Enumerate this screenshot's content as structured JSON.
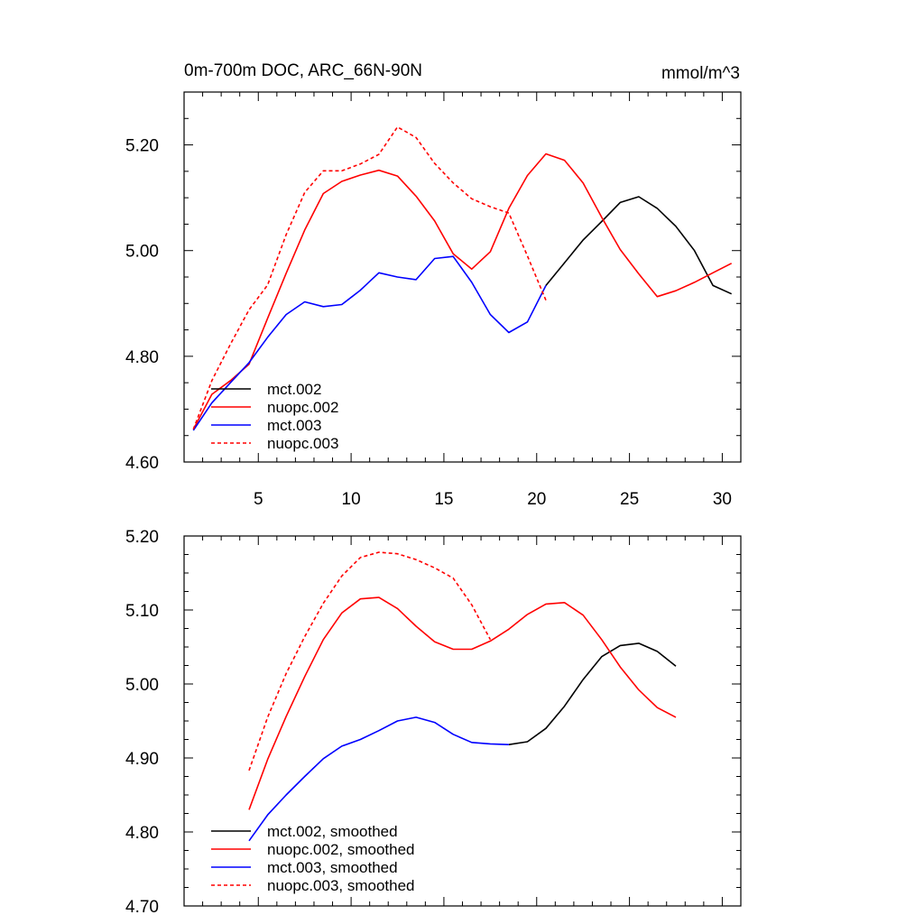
{
  "chart_data": [
    {
      "type": "line",
      "title": "0m-700m DOC, ARC_66N-90N",
      "units": "mmol/m^3",
      "xlim": [
        1,
        31
      ],
      "ylim": [
        4.6,
        5.3
      ],
      "x_ticks": [
        5,
        10,
        15,
        20,
        25,
        30
      ],
      "y_ticks": [
        4.6,
        4.8,
        5.0,
        5.2
      ],
      "x_tick_labels": [
        "5",
        "10",
        "15",
        "20",
        "25",
        "30"
      ],
      "y_tick_labels": [
        "4.60",
        "4.80",
        "5.00",
        "5.20"
      ],
      "grid": false,
      "legend_position": "bottom-left",
      "series": [
        {
          "name": "mct.002",
          "color": "#000000",
          "dash": "solid",
          "x": [
            20.5,
            21.5,
            22.5,
            23.5,
            24.5,
            25.5,
            26.5,
            27.5,
            28.5,
            29.5,
            30.5
          ],
          "y": [
            4.934,
            4.977,
            5.02,
            5.055,
            5.091,
            5.102,
            5.08,
            5.046,
            5.0,
            4.934,
            4.918
          ]
        },
        {
          "name": "nuopc.002",
          "color": "#ff0000",
          "dash": "solid",
          "x": [
            1.5,
            2.5,
            3.5,
            4.5,
            5.5,
            6.5,
            7.5,
            8.5,
            9.5,
            10.5,
            11.5,
            12.5,
            13.5,
            14.5,
            15.5,
            16.5,
            17.5,
            18.5,
            19.5,
            20.5,
            21.5,
            22.5,
            23.5,
            24.5,
            25.5,
            26.5,
            27.5,
            28.5,
            29.5,
            30.5
          ],
          "y": [
            4.662,
            4.728,
            4.754,
            4.785,
            4.872,
            4.957,
            5.039,
            5.108,
            5.131,
            5.143,
            5.152,
            5.141,
            5.103,
            5.056,
            4.994,
            4.965,
            4.998,
            5.08,
            5.142,
            5.183,
            5.171,
            5.128,
            5.063,
            5.002,
            4.956,
            4.913,
            4.924,
            4.94,
            4.958,
            4.976
          ]
        },
        {
          "name": "mct.003",
          "color": "#0000ff",
          "dash": "solid",
          "x": [
            1.5,
            2.5,
            3.5,
            4.5,
            5.5,
            6.5,
            7.5,
            8.5,
            9.5,
            10.5,
            11.5,
            12.5,
            13.5,
            14.5,
            15.5,
            16.5,
            17.5,
            18.5,
            19.5,
            20.5
          ],
          "y": [
            4.66,
            4.712,
            4.75,
            4.788,
            4.836,
            4.879,
            4.903,
            4.894,
            4.898,
            4.925,
            4.958,
            4.95,
            4.945,
            4.985,
            4.989,
            4.94,
            4.879,
            4.845,
            4.865,
            4.934
          ]
        },
        {
          "name": "nuopc.003",
          "color": "#ff0000",
          "dash": "dashed",
          "x": [
            1.5,
            2.5,
            3.5,
            4.5,
            5.5,
            6.5,
            7.5,
            8.5,
            9.5,
            10.5,
            11.5,
            12.5,
            13.5,
            14.5,
            15.5,
            16.5,
            17.5,
            18.5,
            19.5,
            20.5
          ],
          "y": [
            4.662,
            4.754,
            4.823,
            4.888,
            4.935,
            5.03,
            5.11,
            5.151,
            5.151,
            5.164,
            5.182,
            5.234,
            5.214,
            5.165,
            5.128,
            5.098,
            5.083,
            5.071,
            4.99,
            4.906
          ]
        }
      ]
    },
    {
      "type": "line",
      "xlim": [
        1,
        31
      ],
      "ylim": [
        4.7,
        5.2
      ],
      "x_ticks": [
        5,
        10,
        15,
        20,
        25,
        30
      ],
      "y_ticks": [
        4.7,
        4.8,
        4.9,
        5.0,
        5.1,
        5.2
      ],
      "y_tick_labels": [
        "4.70",
        "4.80",
        "4.90",
        "5.00",
        "5.10",
        "5.20"
      ],
      "grid": false,
      "legend_position": "bottom-left",
      "series": [
        {
          "name": "mct.002, smoothed",
          "color": "#000000",
          "dash": "solid",
          "x": [
            18.5,
            19.5,
            20.5,
            21.5,
            22.5,
            23.5,
            24.5,
            25.5,
            26.5,
            27.5
          ],
          "y": [
            4.918,
            4.922,
            4.94,
            4.97,
            5.006,
            5.037,
            5.052,
            5.055,
            5.044,
            5.024
          ]
        },
        {
          "name": "nuopc.002, smoothed",
          "color": "#ff0000",
          "dash": "solid",
          "x": [
            4.5,
            5.5,
            6.5,
            7.5,
            8.5,
            9.5,
            10.5,
            11.5,
            12.5,
            13.5,
            14.5,
            15.5,
            16.5,
            17.5,
            18.5,
            19.5,
            20.5,
            21.5,
            22.5,
            23.5,
            24.5,
            25.5,
            26.5,
            27.5
          ],
          "y": [
            4.83,
            4.898,
            4.956,
            5.01,
            5.06,
            5.096,
            5.115,
            5.117,
            5.102,
            5.078,
            5.057,
            5.047,
            5.047,
            5.058,
            5.074,
            5.094,
            5.108,
            5.11,
            5.093,
            5.06,
            5.023,
            4.992,
            4.968,
            4.955
          ]
        },
        {
          "name": "mct.003, smoothed",
          "color": "#0000ff",
          "dash": "solid",
          "x": [
            4.5,
            5.5,
            6.5,
            7.5,
            8.5,
            9.5,
            10.5,
            11.5,
            12.5,
            13.5,
            14.5,
            15.5,
            16.5,
            17.5,
            18.5
          ],
          "y": [
            4.788,
            4.823,
            4.85,
            4.875,
            4.899,
            4.916,
            4.925,
            4.937,
            4.95,
            4.955,
            4.948,
            4.932,
            4.921,
            4.919,
            4.918
          ]
        },
        {
          "name": "nuopc.003, smoothed",
          "color": "#ff0000",
          "dash": "dashed",
          "x": [
            4.5,
            5.5,
            6.5,
            7.5,
            8.5,
            9.5,
            10.5,
            11.5,
            12.5,
            13.5,
            14.5,
            15.5,
            16.5,
            17.5
          ],
          "y": [
            4.883,
            4.955,
            5.014,
            5.064,
            5.109,
            5.146,
            5.171,
            5.178,
            5.176,
            5.168,
            5.157,
            5.143,
            5.107,
            5.06
          ]
        }
      ]
    }
  ]
}
